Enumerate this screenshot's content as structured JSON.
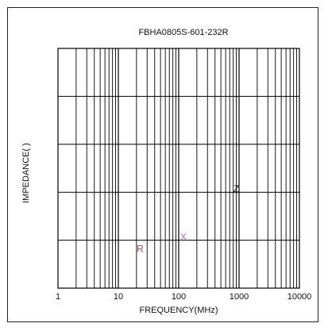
{
  "chart_data": {
    "type": "line",
    "title": "FBHA0805S-601-232R",
    "xlabel": "FREQUENCY(MHz)",
    "ylabel": "IMPEDANCE(  )",
    "x_scale": "log",
    "xlim": [
      1,
      10000
    ],
    "x_ticks": [
      1,
      10,
      100,
      1000,
      10000
    ],
    "x_tick_labels": [
      "1",
      "10",
      "100",
      "1000",
      "10000"
    ],
    "y_gridlines": 5,
    "grid": true,
    "series": [
      {
        "name": "R",
        "color": "#e03030",
        "label_x": 23,
        "label_pos": 0.15
      },
      {
        "name": "X",
        "color": "#b070d0",
        "label_x": 120,
        "label_pos": 0.2
      },
      {
        "name": "Z",
        "color": "#111111",
        "label_x": 900,
        "label_pos": 0.4
      }
    ]
  }
}
